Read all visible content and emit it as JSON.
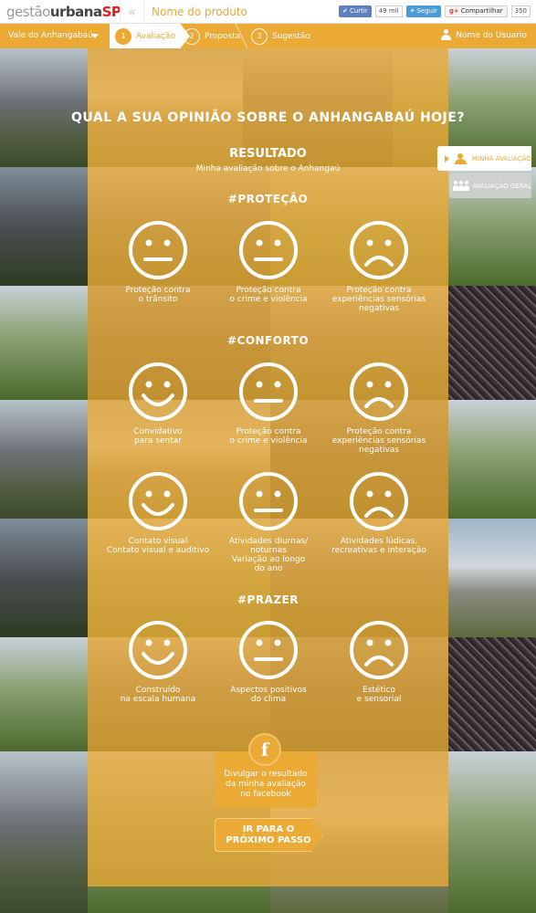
{
  "header": {
    "logo": {
      "part1": "gestão",
      "part2": "urbana",
      "part3": "SP"
    },
    "back_icon": "double-chevron-left-icon",
    "product_name": "Nome do produto",
    "social": {
      "like_label": "Curtir",
      "like_count": "49 mil",
      "follow_label": "Seguir",
      "share_label": "Compartilhar",
      "share_prefix": "g+",
      "share_count": "350"
    }
  },
  "nav": {
    "location": "Vale do Anhangabaú",
    "steps": [
      {
        "num": "1",
        "label": "Avaliação"
      },
      {
        "num": "2",
        "label": "Proposta"
      },
      {
        "num": "3",
        "label": "Sugestão"
      }
    ],
    "user_name": "Nome do Usuario"
  },
  "main": {
    "title": "QUAL A SUA OPINIÃO SOBRE O ANHANGABAÚ HOJE?",
    "result_title": "RESULTADO",
    "result_subtitle": "Minha avaliação sobre o Anhangaú",
    "tabs": {
      "mine": "MINHA AVALIAÇÃO",
      "general": "AVALIAÇÃO GERAL"
    },
    "sections": [
      {
        "title": "#PROTEÇÃO",
        "items": [
          {
            "mood": "neutral",
            "line1": "Proteção contra",
            "line2": "o trânsito",
            "line3": ""
          },
          {
            "mood": "neutral",
            "line1": "Proteção contra",
            "line2": "o crime e violência",
            "line3": ""
          },
          {
            "mood": "sad",
            "line1": "Proteção contra",
            "line2": "experiências sensórias",
            "line3": "negativas"
          }
        ]
      },
      {
        "title": "#CONFORTO",
        "items": [
          {
            "mood": "happy",
            "line1": "Convidativo",
            "line2": "para sentar",
            "line3": ""
          },
          {
            "mood": "neutral",
            "line1": "Proteção contra",
            "line2": "o crime e violência",
            "line3": ""
          },
          {
            "mood": "sad",
            "line1": "Proteção contra",
            "line2": "experiências sensórias",
            "line3": "negativas"
          },
          {
            "mood": "happy",
            "line1": "Contato visual",
            "line2": "Contato visual e auditivo",
            "line3": "",
            "line4": ""
          },
          {
            "mood": "neutral",
            "line1": "Atividades diurnas/",
            "line2": "noturnas",
            "line3": "Variação ao longo",
            "line4": "do ano"
          },
          {
            "mood": "sad",
            "line1": "Atividades lúdicas,",
            "line2": "recreativas e interação",
            "line3": "",
            "line4": ""
          }
        ]
      },
      {
        "title": "#PRAZER",
        "items": [
          {
            "mood": "happy",
            "line1": "Construído",
            "line2": "na escala humana",
            "line3": ""
          },
          {
            "mood": "neutral",
            "line1": "Aspectos positivos",
            "line2": "do clima",
            "line3": ""
          },
          {
            "mood": "sad",
            "line1": "Estético",
            "line2": "e sensorial",
            "line3": ""
          }
        ]
      }
    ],
    "share": {
      "icon": "f",
      "line1": "Divulgar o resultado",
      "line2": "da minha avaliação",
      "line3": "no facebook"
    },
    "next": {
      "line1": "IR PARA O",
      "line2": "PRÓXIMO PASSO"
    }
  }
}
